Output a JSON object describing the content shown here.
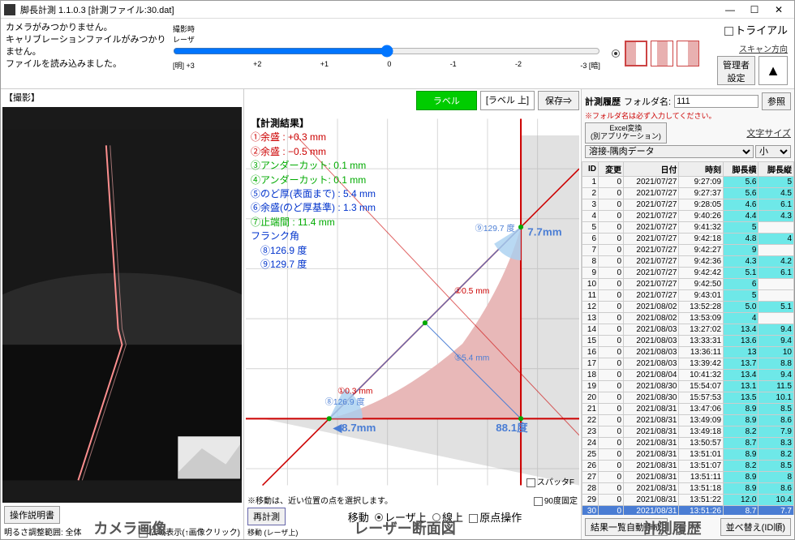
{
  "window": {
    "title": "脚長計測 1.1.0.3 [計測ファイル:30.dat]",
    "minimize": "—",
    "maximize": "☐",
    "close": "✕"
  },
  "messages": {
    "l1": "カメラがみつかりません。",
    "l2": "キャリブレーションファイルがみつかりません。",
    "l3": "ファイルを読み込みました。"
  },
  "slider": {
    "title1": "撮影時",
    "title2": "レーザ",
    "labels": [
      "[明] +3",
      "+2",
      "+1",
      "0",
      "-1",
      "-2",
      "-3 [暗]"
    ]
  },
  "toprow": {
    "trial": "トライアル",
    "scan_dir": "スキャン方向",
    "admin_btn": "管理者\n設定",
    "arrow": "▲"
  },
  "left": {
    "shot_label": "【撮影】",
    "manual_btn": "操作説明書",
    "brightness_label": "明るさ調整範囲: 全体",
    "wide_chk": "広域表示(↑画像クリック)"
  },
  "mid": {
    "label_btn": "ラベル",
    "label_sel": "[ラベル 上]",
    "save_btn": "保存⇒",
    "results_header": "【計測結果】",
    "r1": "①余盛 : +0.3 mm",
    "r2": "②余盛 : −0.5 mm",
    "r3": "③アンダーカット: 0.1 mm",
    "r4": "④アンダーカット: 0.1 mm",
    "r5": "⑤のど厚(表面まで) : 5.4 mm",
    "r6": "⑥余盛(のど厚基準) : 1.3 mm",
    "r7": "⑦止端間 : 11.4 mm",
    "r8": "フランク角",
    "r9": "⑧126.9 度",
    "r10": "⑨129.7 度",
    "ann_5_4": "⑤5.4 mm",
    "ann_0_5": "②0.5 mm",
    "ann_129_7": "⑨129.7 度",
    "ann_7_7": "7.7mm",
    "ann_0_3": "①0.3 mm",
    "ann_126_9": "⑧126.9 度",
    "ann_8_7": "8.7mm",
    "ann_88_1": "88.1度",
    "spatter": "スパッタF",
    "move_note": "※移動は、近い位置の点を選択します。",
    "fix90": "90度固定",
    "recalc_btn": "再計測",
    "move_label": "移動",
    "opt_laser": "レーザ上",
    "opt_line": "線上",
    "opt_origin": "原点操作",
    "move_status": "移動 (レーザ上)",
    "colors": {
      "r1": "#cc0000",
      "r2": "#cc0000",
      "r3": "#00aa00",
      "r4": "#00aa00",
      "r5": "#0033cc",
      "r6": "#0033cc",
      "r7": "#00aa00",
      "r8": "#0033cc",
      "r9": "#0033cc",
      "r10": "#0033cc"
    }
  },
  "right": {
    "title": "計測履歴",
    "folder_label": "フォルダ名:",
    "folder_value": "111",
    "ref_btn": "参照",
    "note": "※フォルダ名は必ず入力してください。",
    "excel_btn": "Excel変換\n(別アプリケーション)",
    "fontsize_label": "文字サイズ",
    "datatype": "溶接-隅肉データ",
    "size_sel": "小",
    "cols": [
      "ID",
      "変更",
      "日付",
      "時刻",
      "脚長横",
      "脚長縦"
    ],
    "rows": [
      [
        1,
        0,
        "2021/07/27",
        "9:27:09",
        "5.6",
        "5"
      ],
      [
        2,
        0,
        "2021/07/27",
        "9:27:37",
        "5.6",
        "4.5"
      ],
      [
        3,
        0,
        "2021/07/27",
        "9:28:05",
        "4.6",
        "6.1"
      ],
      [
        4,
        0,
        "2021/07/27",
        "9:40:26",
        "4.4",
        "4.3"
      ],
      [
        5,
        0,
        "2021/07/27",
        "9:41:32",
        "5",
        ""
      ],
      [
        6,
        0,
        "2021/07/27",
        "9:42:18",
        "4.8",
        "4"
      ],
      [
        7,
        0,
        "2021/07/27",
        "9:42:27",
        "9",
        ""
      ],
      [
        8,
        0,
        "2021/07/27",
        "9:42:36",
        "4.3",
        "4.2"
      ],
      [
        9,
        0,
        "2021/07/27",
        "9:42:42",
        "5.1",
        "6.1"
      ],
      [
        10,
        0,
        "2021/07/27",
        "9:42:50",
        "6",
        ""
      ],
      [
        11,
        0,
        "2021/07/27",
        "9:43:01",
        "5",
        ""
      ],
      [
        12,
        0,
        "2021/08/02",
        "13:52:28",
        "5.0",
        "5.1"
      ],
      [
        13,
        0,
        "2021/08/02",
        "13:53:09",
        "4",
        ""
      ],
      [
        14,
        0,
        "2021/08/03",
        "13:27:02",
        "13.4",
        "9.4"
      ],
      [
        15,
        0,
        "2021/08/03",
        "13:33:31",
        "13.6",
        "9.4"
      ],
      [
        16,
        0,
        "2021/08/03",
        "13:36:11",
        "13",
        "10"
      ],
      [
        17,
        0,
        "2021/08/03",
        "13:39:42",
        "13.7",
        "8.8"
      ],
      [
        18,
        0,
        "2021/08/04",
        "10:41:32",
        "13.4",
        "9.4"
      ],
      [
        19,
        0,
        "2021/08/30",
        "15:54:07",
        "13.1",
        "11.5"
      ],
      [
        20,
        0,
        "2021/08/30",
        "15:57:53",
        "13.5",
        "10.1"
      ],
      [
        21,
        0,
        "2021/08/31",
        "13:47:06",
        "8.9",
        "8.5"
      ],
      [
        22,
        0,
        "2021/08/31",
        "13:49:09",
        "8.9",
        "8.6"
      ],
      [
        23,
        0,
        "2021/08/31",
        "13:49:18",
        "8.2",
        "7.9"
      ],
      [
        24,
        0,
        "2021/08/31",
        "13:50:57",
        "8.7",
        "8.3"
      ],
      [
        25,
        0,
        "2021/08/31",
        "13:51:01",
        "8.9",
        "8.2"
      ],
      [
        26,
        0,
        "2021/08/31",
        "13:51:07",
        "8.2",
        "8.5"
      ],
      [
        27,
        0,
        "2021/08/31",
        "13:51:11",
        "8.9",
        "8"
      ],
      [
        28,
        0,
        "2021/08/31",
        "13:51:18",
        "8.9",
        "8.6"
      ],
      [
        29,
        0,
        "2021/08/31",
        "13:51:22",
        "12.0",
        "10.4"
      ],
      [
        30,
        0,
        "2021/08/31",
        "13:51:26",
        "8.7",
        "7.7"
      ]
    ],
    "selected_row": 30,
    "auto_btn": "結果一覧自動作成",
    "sort_btn": "並べ替え(ID順)"
  },
  "captions": {
    "left": "カメラ画像",
    "mid": "レーザー断面図",
    "right": "計測履歴"
  },
  "plot": {
    "grid_color": "#d8d8d8",
    "axis_color": "#cc0000",
    "weld_fill": "#e8b8b8",
    "overlay_fill": "rgba(160,160,160,0.35)",
    "blue_line": "#4a7dd4",
    "arc_fill": "#a8d0f0"
  }
}
